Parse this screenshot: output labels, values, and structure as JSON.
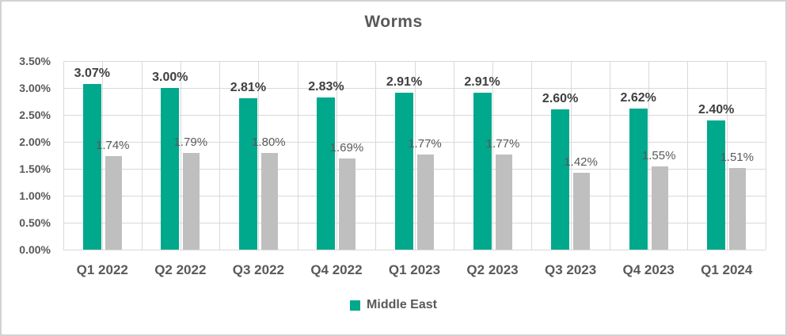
{
  "colors": {
    "background": "#FFFFFF",
    "frame_border": "#D2D2D2",
    "gridline": "#D9D9D9",
    "title_text": "#595959",
    "axis_text": "#595959",
    "primary_label_text": "#3F3F3F",
    "secondary_label_text": "#595959",
    "legend_text": "#595959"
  },
  "chart_data": {
    "type": "bar",
    "title": "Worms",
    "categories": [
      "Q1 2022",
      "Q2 2022",
      "Q3 2022",
      "Q4 2022",
      "Q1 2023",
      "Q2 2023",
      "Q3 2023",
      "Q4 2023",
      "Q1 2024"
    ],
    "series": [
      {
        "name": "Middle East",
        "color": "#00A88C",
        "values": [
          3.07,
          3.0,
          2.81,
          2.83,
          2.91,
          2.91,
          2.6,
          2.62,
          2.4
        ],
        "data_labels": [
          "3.07%",
          "3.00%",
          "2.81%",
          "2.83%",
          "2.91%",
          "2.91%",
          "2.60%",
          "2.62%",
          "2.40%"
        ],
        "label_bold": true,
        "in_legend": true
      },
      {
        "name": "",
        "color": "#BFBFBF",
        "values": [
          1.74,
          1.79,
          1.8,
          1.69,
          1.77,
          1.77,
          1.42,
          1.55,
          1.51
        ],
        "data_labels": [
          "1.74%",
          "1.79%",
          "1.80%",
          "1.69%",
          "1.77%",
          "1.77%",
          "1.42%",
          "1.55%",
          "1.51%"
        ],
        "label_bold": false,
        "in_legend": false
      }
    ],
    "xlabel": "",
    "ylabel": "",
    "ylim": [
      0,
      3.5
    ],
    "ytick_step": 0.5,
    "ytick_labels": [
      "3.50%",
      "3.00%",
      "2.50%",
      "2.00%",
      "1.50%",
      "1.00%",
      "0.50%",
      "0.00%"
    ],
    "grid": true,
    "legend": {
      "position": "bottom",
      "entries": [
        {
          "label": "Middle East",
          "color": "#00A88C"
        }
      ]
    }
  }
}
